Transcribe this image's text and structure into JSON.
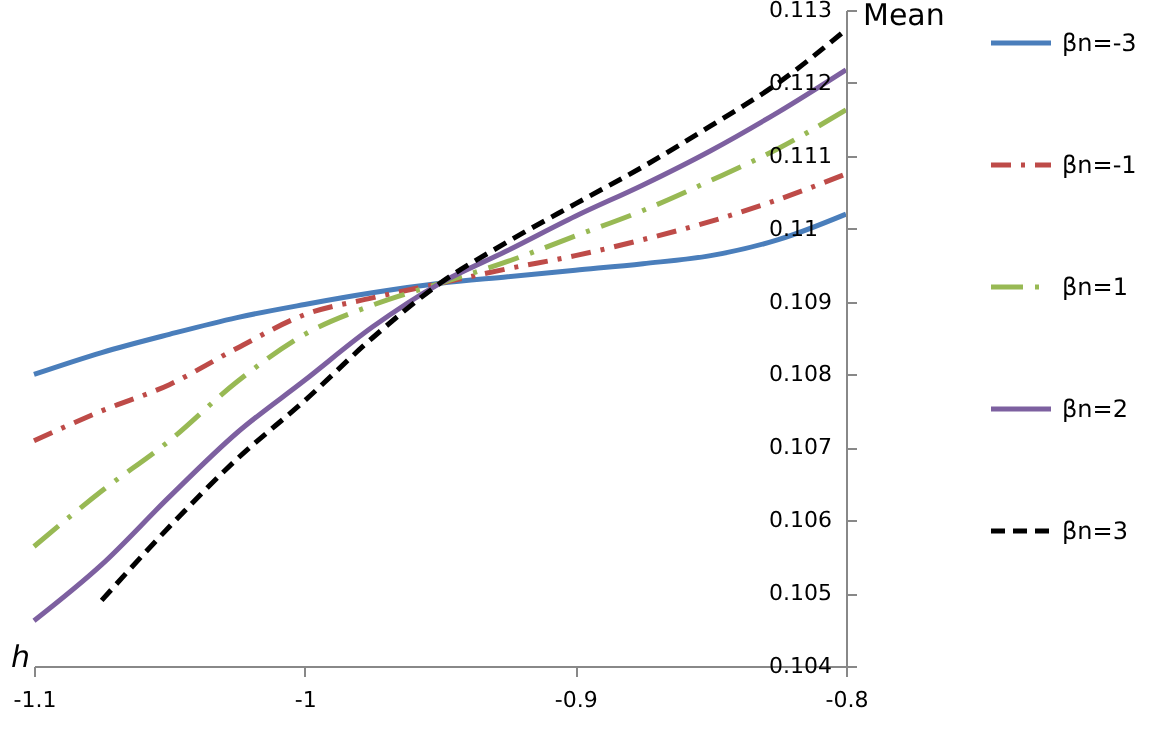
{
  "chart_data": {
    "type": "line",
    "xlabel": "h",
    "ylabel": "Mean",
    "x": [
      -1.1,
      -1.075,
      -1.05,
      -1.025,
      -1.0,
      -0.975,
      -0.95,
      -0.925,
      -0.9,
      -0.875,
      -0.85,
      -0.825,
      -0.8
    ],
    "series": [
      {
        "name": "βn=-3",
        "color": "#4a7ebb",
        "line_style": "solid",
        "values": [
          0.108,
          0.1083,
          0.10855,
          0.10878,
          0.10896,
          0.10912,
          0.10925,
          0.10934,
          0.10943,
          0.10952,
          0.10963,
          0.10985,
          0.1102
        ]
      },
      {
        "name": "βn=-1",
        "color": "#be4b48",
        "line_style": "dashdot",
        "values": [
          0.10709,
          0.1075,
          0.10786,
          0.10836,
          0.10882,
          0.10905,
          0.10925,
          0.10945,
          0.10963,
          0.10985,
          0.1101,
          0.1104,
          0.11075
        ]
      },
      {
        "name": "βn=1",
        "color": "#98b954",
        "line_style": "longdashdot",
        "values": [
          0.10564,
          0.1064,
          0.10709,
          0.1079,
          0.10855,
          0.10895,
          0.10925,
          0.10955,
          0.1099,
          0.11025,
          0.11066,
          0.1111,
          0.11163
        ]
      },
      {
        "name": "βn=2",
        "color": "#7d60a0",
        "line_style": "solid",
        "values": [
          0.10462,
          0.10539,
          0.10632,
          0.1072,
          0.10792,
          0.10865,
          0.10925,
          0.1097,
          0.11017,
          0.1106,
          0.11107,
          0.1116,
          0.11218
        ]
      },
      {
        "name": "βn=3",
        "color": "#000000",
        "line_style": "dashed",
        "values": [
          null,
          0.1049,
          0.10591,
          0.10684,
          0.10764,
          0.1085,
          0.10925,
          0.10982,
          0.11034,
          0.11085,
          0.11141,
          0.112,
          0.11273
        ]
      }
    ],
    "xlim": [
      -1.1,
      -0.8
    ],
    "xticks": [
      -1.1,
      -1,
      -0.9,
      -0.8
    ],
    "ylim": [
      0.104,
      0.113
    ],
    "yticks": [
      0.104,
      0.105,
      0.106,
      0.107,
      0.108,
      0.109,
      0.11,
      0.111,
      0.112,
      0.113
    ],
    "grid": false,
    "legend": "right",
    "marker": "none"
  }
}
